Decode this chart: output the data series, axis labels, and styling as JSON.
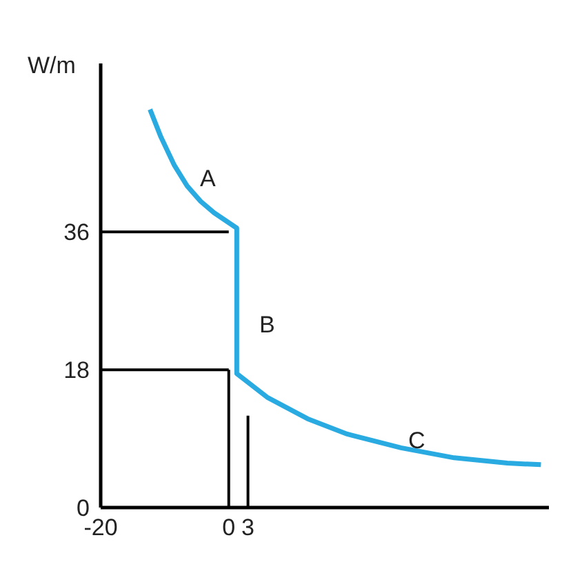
{
  "chart_data": {
    "type": "line",
    "ylabel": "W/m",
    "xlim": [
      -20,
      50
    ],
    "xticks": [
      -20,
      0,
      3
    ],
    "ylim": [
      0,
      58
    ],
    "yticks": [
      0,
      18,
      36
    ],
    "grid": false,
    "marker": "none",
    "tick_labels": true,
    "series": [
      {
        "color": "#29abe2",
        "x": [
          -12.3,
          -10.6,
          -8.5,
          -6.5,
          -4.4,
          -2.3,
          1.25,
          1.25,
          6,
          12.3,
          18.5,
          26.9,
          35.2,
          43.5,
          48.75
        ],
        "values": [
          52,
          48.4,
          44.7,
          42,
          40,
          38.5,
          36.5,
          17.5,
          14.4,
          11.6,
          9.6,
          7.8,
          6.5,
          5.8,
          5.6
        ]
      },
      {
        "color": "#000000",
        "x": [
          -20,
          0
        ],
        "values": [
          36,
          36
        ]
      },
      {
        "color": "#000000",
        "x": [
          -20,
          0
        ],
        "values": [
          18,
          18
        ]
      },
      {
        "color": "#000000",
        "x": [
          0,
          0
        ],
        "values": [
          0,
          18
        ]
      },
      {
        "color": "#000000",
        "x": [
          3,
          3
        ],
        "values": [
          0,
          12
        ]
      }
    ],
    "annotations": [
      "A",
      "B",
      "C"
    ]
  }
}
